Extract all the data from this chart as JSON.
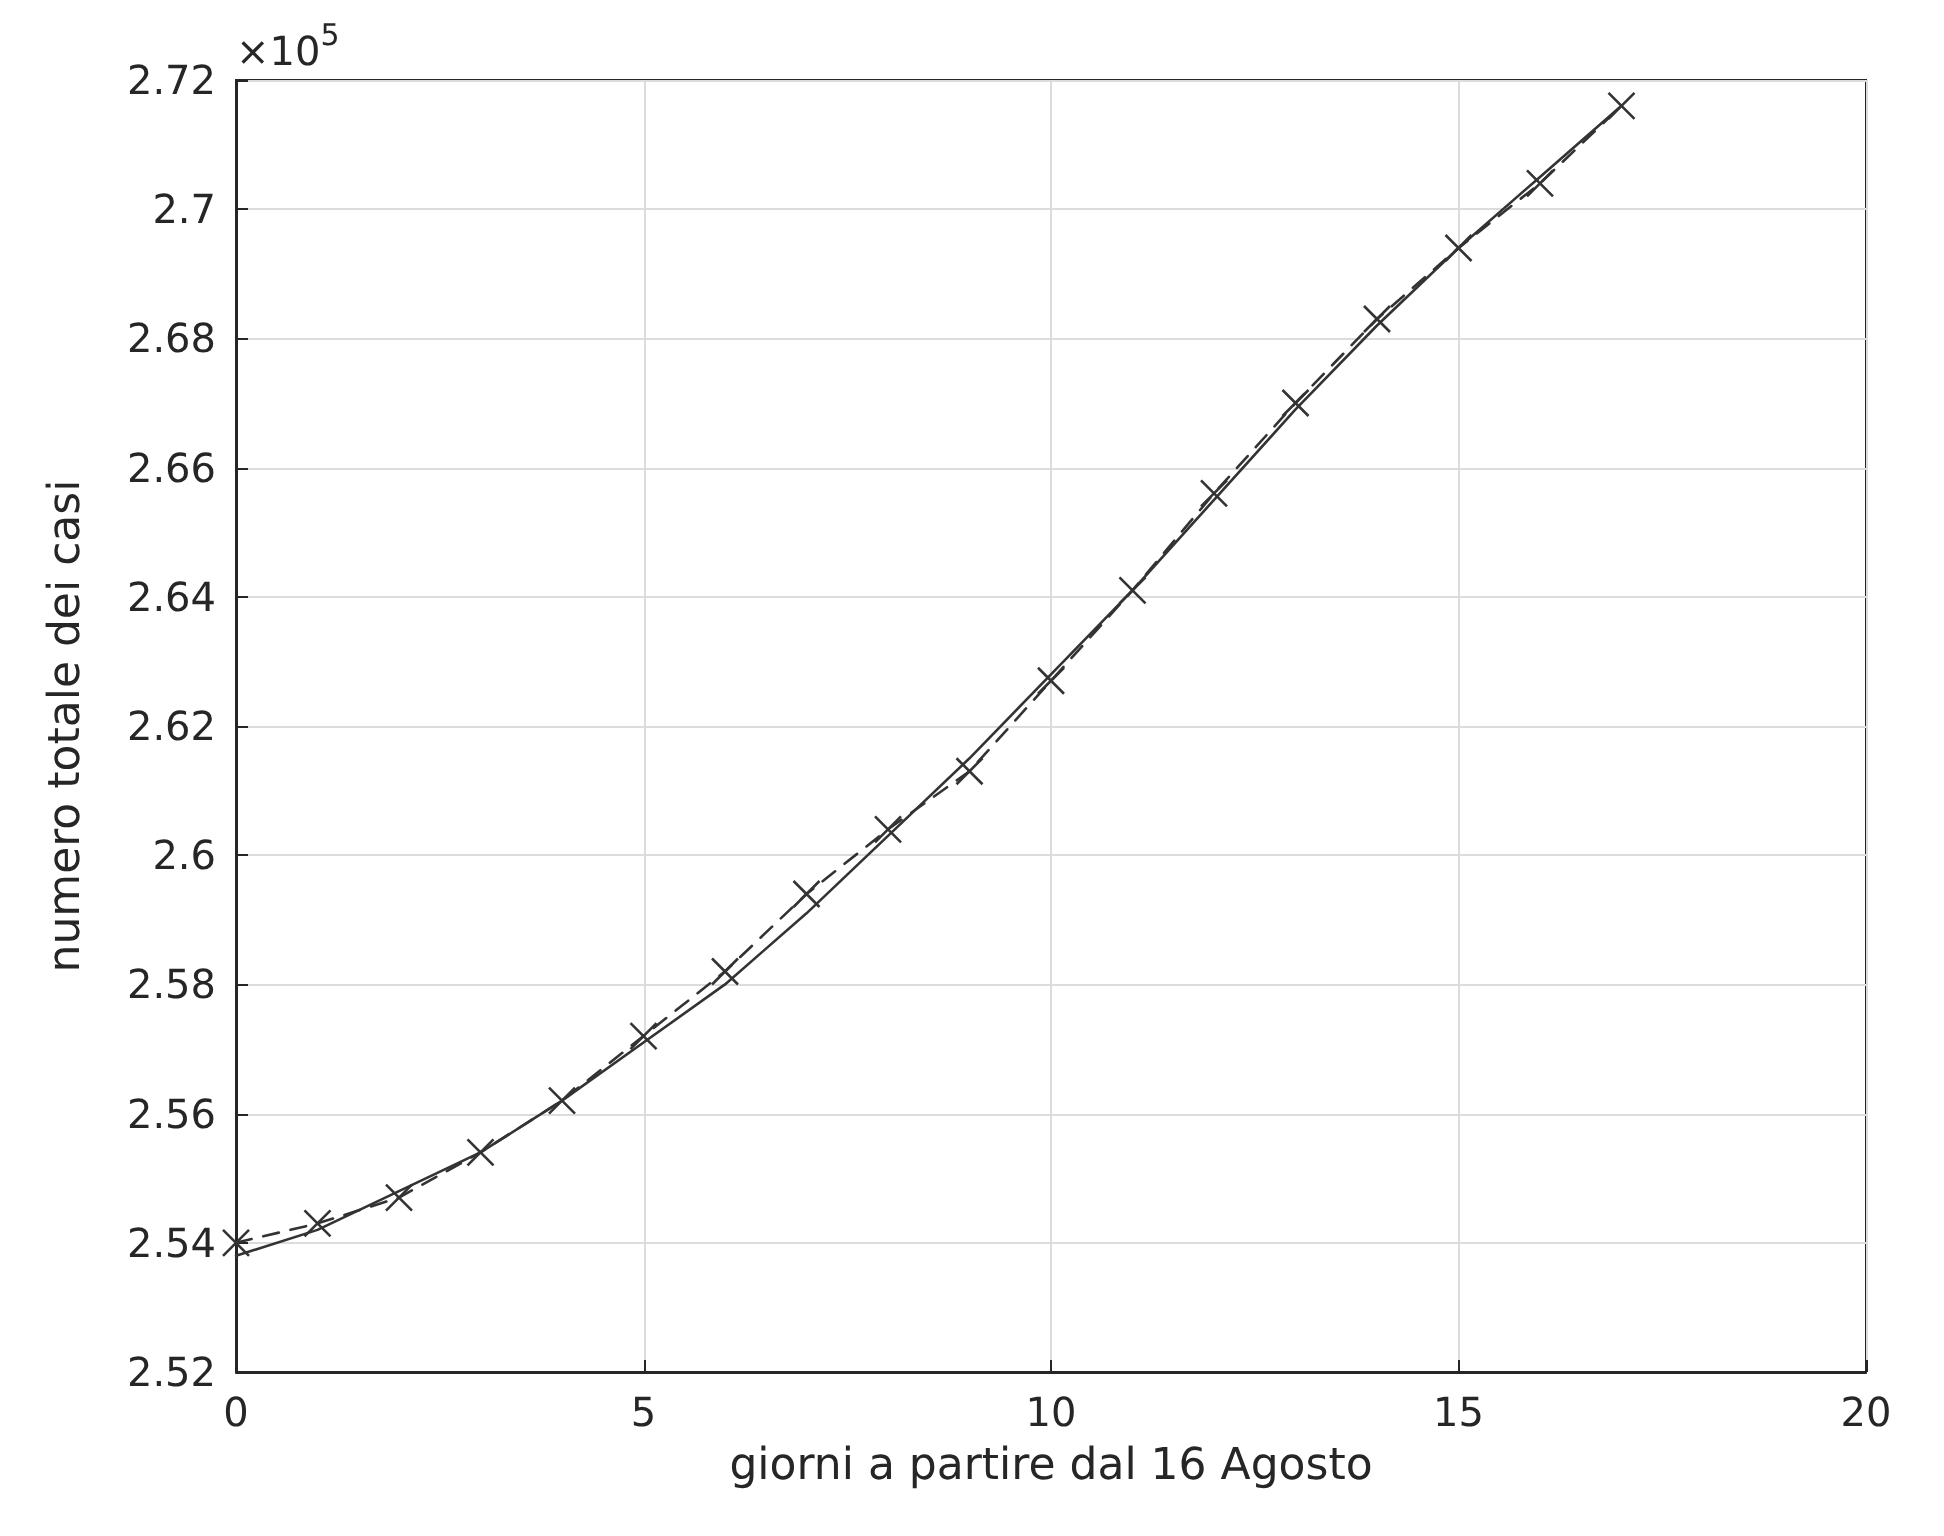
{
  "chart_data": {
    "type": "line",
    "xlabel": "giorni a partire dal 16 Agosto",
    "ylabel": "numero totale dei casi",
    "annotations": [
      "×10$^{5}$"
    ],
    "xlim": [
      0,
      20
    ],
    "xticks": [
      0,
      5,
      10,
      15,
      20
    ],
    "ylim": [
      2.52,
      2.72
    ],
    "yticks": [
      2.52,
      2.54,
      2.56,
      2.58,
      2.6,
      2.62,
      2.64,
      2.66,
      2.68,
      2.7,
      2.72
    ],
    "grid": true,
    "series": [
      {
        "color": "#333333",
        "marker": "cross",
        "line_style": "dashed",
        "x": [
          0,
          1,
          2,
          3,
          4,
          5,
          6,
          7,
          8,
          9,
          10,
          11,
          12,
          13,
          14,
          15,
          16,
          17
        ],
        "values": [
          2.54,
          2.543,
          2.547,
          2.554,
          2.562,
          2.572,
          2.582,
          2.594,
          2.604,
          2.613,
          2.627,
          2.641,
          2.656,
          2.67,
          2.683,
          2.694,
          2.704,
          2.716
        ]
      },
      {
        "color": "#333333",
        "marker": "none",
        "line_style": "solid",
        "x": [
          0,
          1,
          2,
          3,
          4,
          5,
          6,
          7,
          8,
          9,
          10,
          11,
          12,
          13,
          14,
          15,
          16,
          17
        ],
        "values": [
          2.538,
          2.542,
          2.548,
          2.554,
          2.562,
          2.571,
          2.58,
          2.591,
          2.603,
          2.615,
          2.628,
          2.641,
          2.655,
          2.669,
          2.682,
          2.694,
          2.705,
          2.716
        ]
      }
    ]
  }
}
